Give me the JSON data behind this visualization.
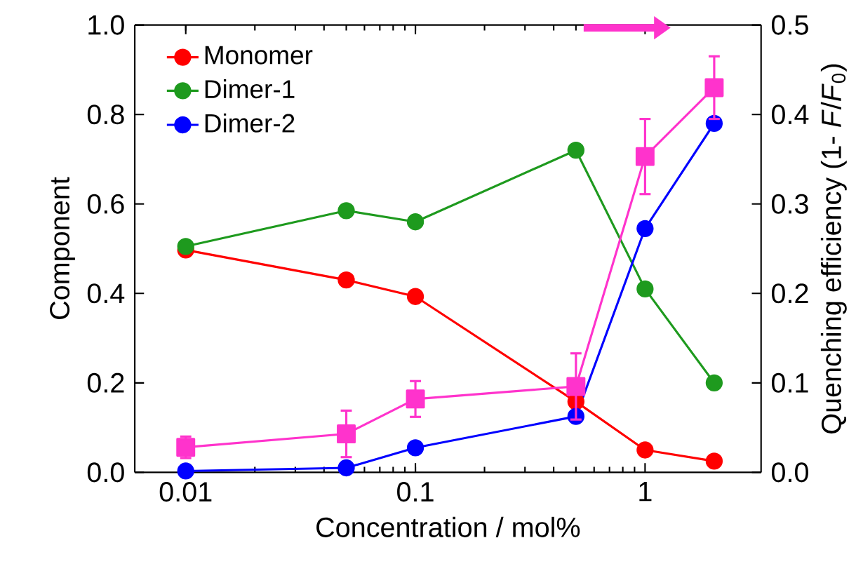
{
  "chart_data": {
    "type": "line",
    "xlabel": "Concentration / mol%",
    "ylabel": "Component",
    "y2label": "Quenching efficiency (1- *F*/*F*$_{0}$)",
    "x": [
      0.01,
      0.05,
      0.1,
      0.5,
      1,
      2
    ],
    "series": [
      {
        "name": "Monomer",
        "color": "#ff0000",
        "marker": "circle",
        "values": [
          0.497,
          0.43,
          0.393,
          0.158,
          0.05,
          0.025
        ]
      },
      {
        "name": "Dimer-1",
        "color": "#1e9a1e",
        "marker": "circle",
        "values": [
          0.505,
          0.585,
          0.56,
          0.72,
          0.41,
          0.2
        ]
      },
      {
        "name": "Dimer-2",
        "color": "#0000ff",
        "marker": "circle",
        "values": [
          0.003,
          0.01,
          0.055,
          0.125,
          0.545,
          0.78
        ]
      },
      {
        "color": "#ff33cc",
        "marker": "square",
        "axis": "y2",
        "values": [
          0.028,
          0.043,
          0.082,
          0.096,
          0.353,
          0.43
        ],
        "errors": [
          0.012,
          0.026,
          0.02,
          0.037,
          0.042,
          0.035
        ]
      }
    ],
    "log": "x",
    "xlim": [
      0.006,
      3.2
    ],
    "xticks": [
      0.01,
      0.1,
      1
    ],
    "ylim": [
      0,
      1
    ],
    "yticks": [
      {
        "value": 0,
        "label": "0.0"
      },
      {
        "value": 0.2,
        "label": "0.2"
      },
      {
        "value": 0.4,
        "label": "0.4"
      },
      {
        "value": 0.6,
        "label": "0.6"
      },
      {
        "value": 0.8,
        "label": "0.8"
      },
      {
        "value": 1,
        "label": "1.0"
      }
    ],
    "y2lim": [
      0,
      0.5
    ],
    "y2ticks": [
      {
        "value": 0,
        "label": "0.0"
      },
      {
        "value": 0.1,
        "label": "0.1"
      },
      {
        "value": 0.2,
        "label": "0.2"
      },
      {
        "value": 0.3,
        "label": "0.3"
      },
      {
        "value": 0.4,
        "label": "0.4"
      },
      {
        "value": 0.5,
        "label": "0.5"
      }
    ],
    "legend": "top left",
    "grid": false
  }
}
